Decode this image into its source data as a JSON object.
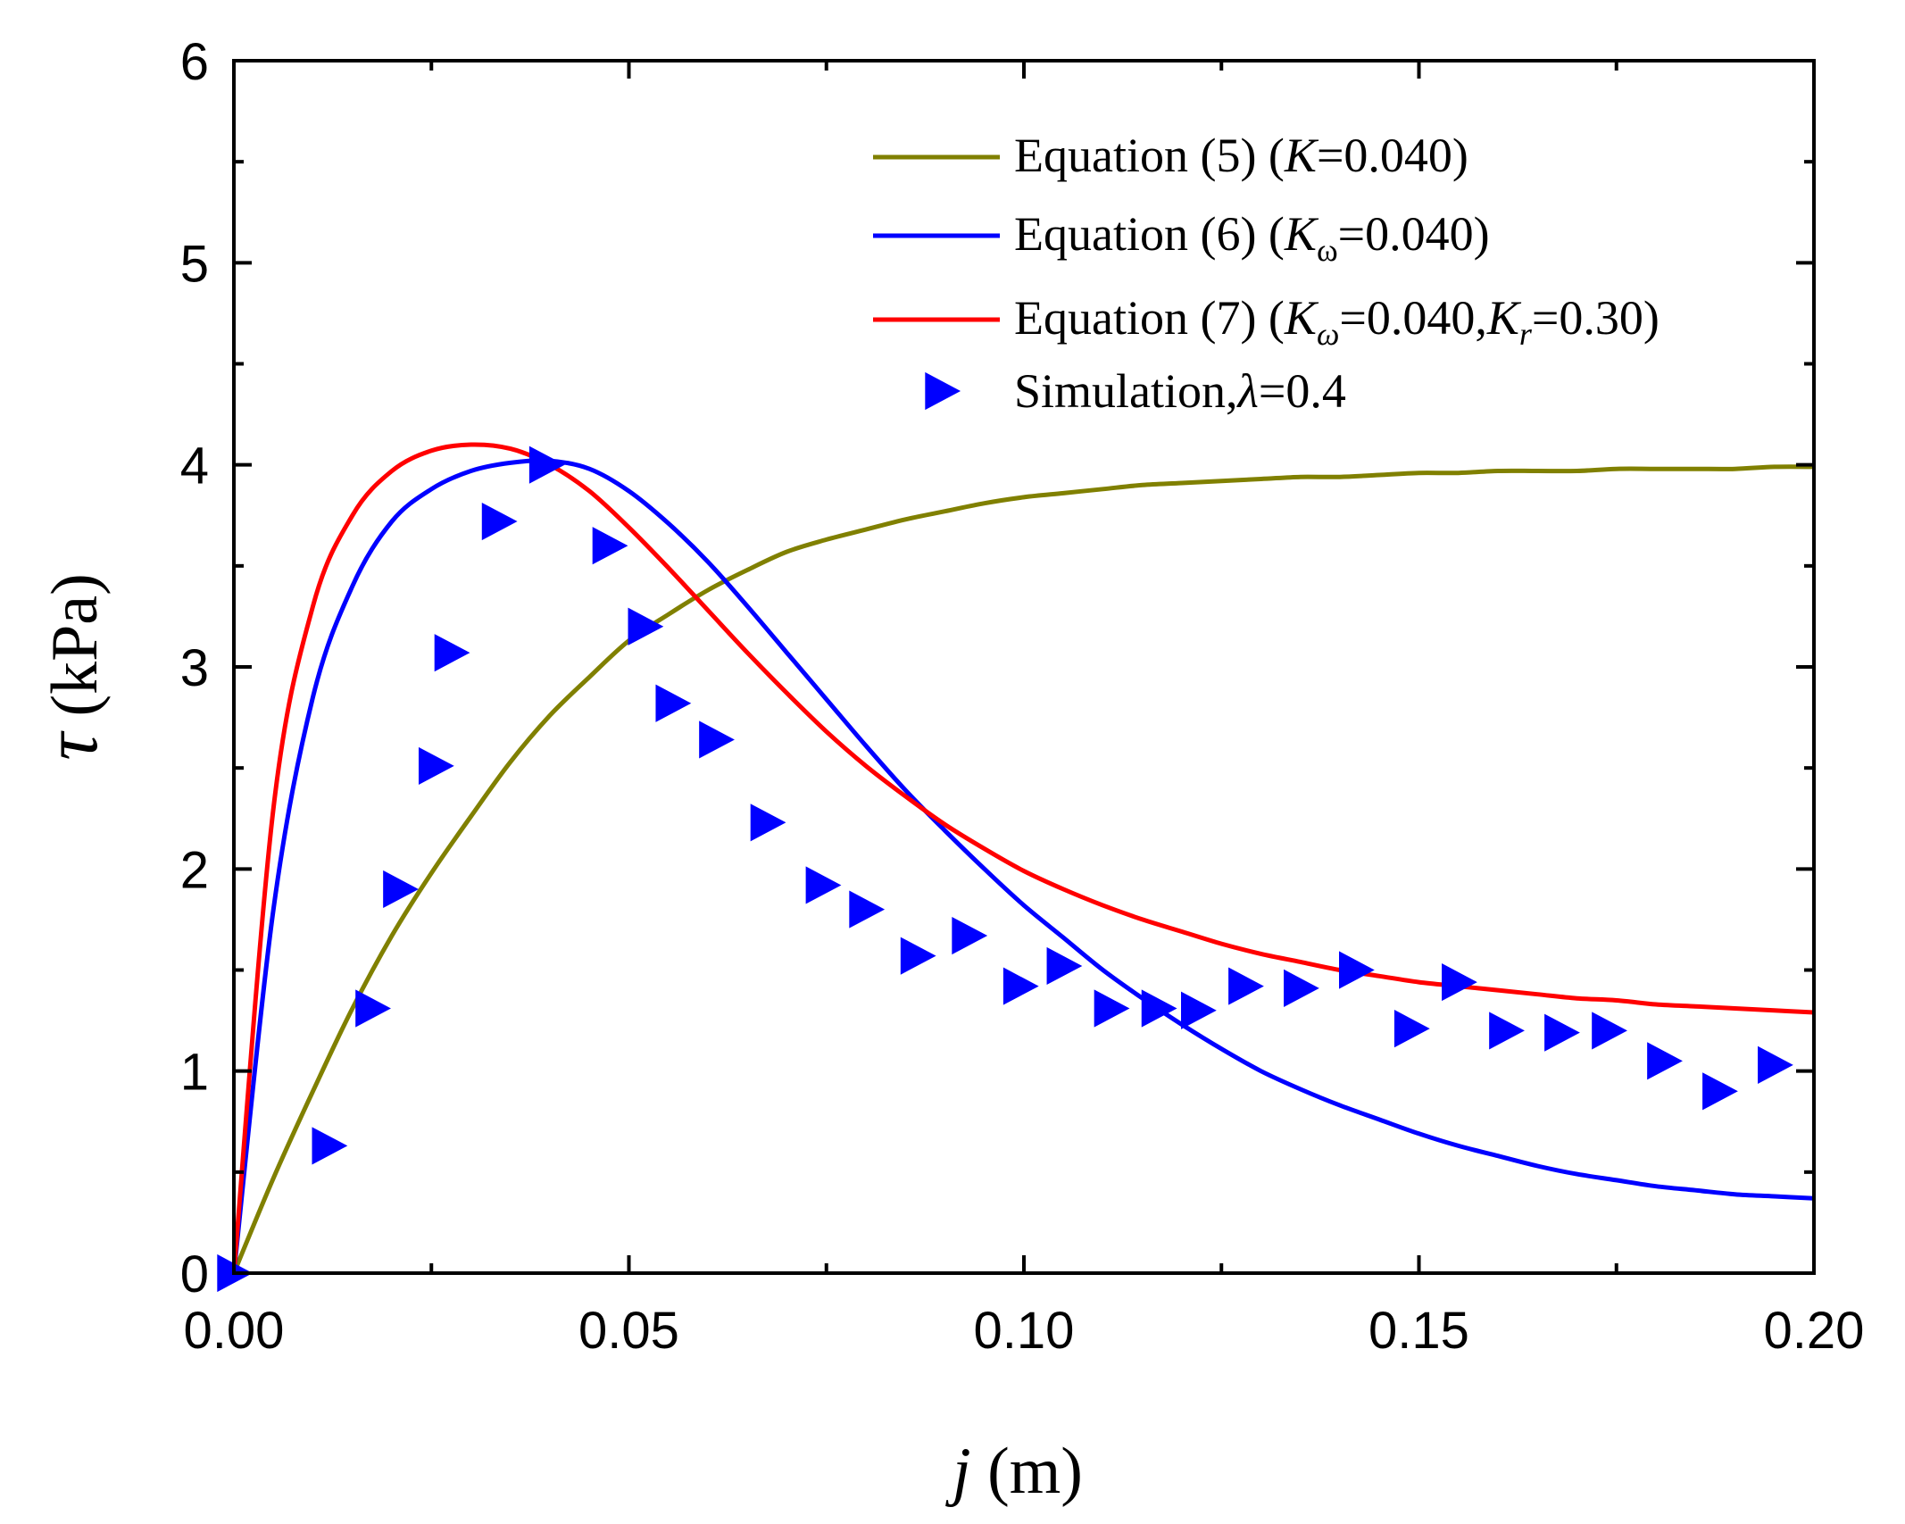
{
  "chart_data": {
    "type": "line",
    "title": "",
    "xlabel": "j (m)",
    "ylabel": "τ (kPa)",
    "xlabel_parts": {
      "var": "j",
      "unit": " (m)"
    },
    "ylabel_parts": {
      "var": "τ",
      "unit": "  (kPa)"
    },
    "xlim": [
      0,
      0.2
    ],
    "ylim": [
      0,
      6
    ],
    "xticks": [
      0.0,
      0.05,
      0.1,
      0.15,
      0.2
    ],
    "xtick_labels": [
      "0.00",
      "0.05",
      "0.10",
      "0.15",
      "0.20"
    ],
    "yticks": [
      0,
      1,
      2,
      3,
      4,
      5,
      6
    ],
    "ytick_labels": [
      "0",
      "1",
      "2",
      "3",
      "4",
      "5",
      "6"
    ],
    "grid": false,
    "legend_position": "top-right",
    "series": [
      {
        "name": "Equation (5)  (K=0.040)",
        "legend": {
          "pre": "Equation (5)  (",
          "K": "K",
          "post": "=0.040)"
        },
        "kind": "line",
        "color": "#808000",
        "x": [
          0,
          0.005,
          0.01,
          0.015,
          0.02,
          0.025,
          0.03,
          0.035,
          0.04,
          0.045,
          0.05,
          0.055,
          0.06,
          0.065,
          0.07,
          0.075,
          0.08,
          0.085,
          0.09,
          0.095,
          0.1,
          0.105,
          0.11,
          0.115,
          0.12,
          0.125,
          0.13,
          0.135,
          0.14,
          0.145,
          0.15,
          0.155,
          0.16,
          0.165,
          0.17,
          0.175,
          0.18,
          0.185,
          0.19,
          0.195,
          0.2
        ],
        "y": [
          0,
          0.47,
          0.9,
          1.31,
          1.67,
          1.98,
          2.26,
          2.53,
          2.76,
          2.95,
          3.13,
          3.26,
          3.38,
          3.48,
          3.57,
          3.63,
          3.68,
          3.73,
          3.77,
          3.81,
          3.84,
          3.86,
          3.88,
          3.9,
          3.91,
          3.92,
          3.93,
          3.94,
          3.94,
          3.95,
          3.96,
          3.96,
          3.97,
          3.97,
          3.97,
          3.98,
          3.98,
          3.98,
          3.98,
          3.99,
          3.99
        ]
      },
      {
        "name": "Equation (6)  (Kω=0.040)",
        "legend": {
          "pre": "Equation (6)  (",
          "K": "K",
          "sub": "ω",
          "post": "=0.040)"
        },
        "kind": "line",
        "color": "#0000ff",
        "x": [
          0,
          0.005,
          0.01,
          0.015,
          0.02,
          0.025,
          0.03,
          0.035,
          0.04,
          0.045,
          0.05,
          0.055,
          0.06,
          0.065,
          0.07,
          0.075,
          0.08,
          0.085,
          0.09,
          0.095,
          0.1,
          0.105,
          0.11,
          0.115,
          0.12,
          0.125,
          0.13,
          0.135,
          0.14,
          0.145,
          0.15,
          0.155,
          0.16,
          0.165,
          0.17,
          0.175,
          0.18,
          0.185,
          0.19,
          0.195,
          0.2
        ],
        "y": [
          0,
          1.8,
          2.85,
          3.4,
          3.72,
          3.88,
          3.97,
          4.01,
          4.02,
          3.98,
          3.87,
          3.71,
          3.52,
          3.3,
          3.07,
          2.84,
          2.61,
          2.39,
          2.19,
          2.0,
          1.82,
          1.66,
          1.5,
          1.36,
          1.23,
          1.11,
          1.0,
          0.91,
          0.83,
          0.76,
          0.69,
          0.63,
          0.58,
          0.53,
          0.49,
          0.46,
          0.43,
          0.41,
          0.39,
          0.38,
          0.37
        ]
      },
      {
        "name": "Equation (7)  (Kω=0.040,Kr=0.30)",
        "legend": {
          "pre": "Equation (7)  (",
          "K": "K",
          "sub": "ω",
          "mid": "=0.040,",
          "K2": "K",
          "sub2": "r",
          "post": "=0.30)"
        },
        "kind": "line",
        "color": "#ff0000",
        "x": [
          0,
          0.005,
          0.01,
          0.015,
          0.02,
          0.025,
          0.03,
          0.035,
          0.04,
          0.045,
          0.05,
          0.055,
          0.06,
          0.065,
          0.07,
          0.075,
          0.08,
          0.085,
          0.09,
          0.095,
          0.1,
          0.105,
          0.11,
          0.115,
          0.12,
          0.125,
          0.13,
          0.135,
          0.14,
          0.145,
          0.15,
          0.155,
          0.16,
          0.165,
          0.17,
          0.175,
          0.18,
          0.185,
          0.19,
          0.195,
          0.2
        ],
        "y": [
          0,
          2.3,
          3.3,
          3.75,
          3.97,
          4.07,
          4.1,
          4.08,
          4.0,
          3.87,
          3.69,
          3.49,
          3.28,
          3.07,
          2.87,
          2.68,
          2.51,
          2.36,
          2.22,
          2.1,
          1.99,
          1.9,
          1.82,
          1.75,
          1.69,
          1.63,
          1.58,
          1.54,
          1.5,
          1.47,
          1.44,
          1.42,
          1.4,
          1.38,
          1.36,
          1.35,
          1.33,
          1.32,
          1.31,
          1.3,
          1.29
        ]
      },
      {
        "name": "Simulation,λ=0.4",
        "legend": {
          "pre": "Simulation,",
          "lambda": "λ",
          "post": "=0.4"
        },
        "kind": "scatter",
        "marker": "triangle-right",
        "color": "#0000ff",
        "x": [
          0.0,
          0.012,
          0.0175,
          0.021,
          0.0255,
          0.0275,
          0.0335,
          0.0395,
          0.0475,
          0.052,
          0.0555,
          0.061,
          0.0675,
          0.0745,
          0.08,
          0.0865,
          0.093,
          0.0995,
          0.105,
          0.111,
          0.117,
          0.122,
          0.128,
          0.135,
          0.142,
          0.149,
          0.155,
          0.161,
          0.168,
          0.174,
          0.181,
          0.188,
          0.195
        ],
        "y": [
          0.0,
          0.63,
          1.31,
          1.9,
          2.51,
          3.07,
          3.72,
          4.0,
          3.6,
          3.2,
          2.82,
          2.64,
          2.23,
          1.92,
          1.8,
          1.57,
          1.67,
          1.42,
          1.52,
          1.31,
          1.31,
          1.3,
          1.42,
          1.41,
          1.5,
          1.21,
          1.44,
          1.2,
          1.19,
          1.2,
          1.05,
          0.9,
          1.03
        ]
      }
    ]
  }
}
